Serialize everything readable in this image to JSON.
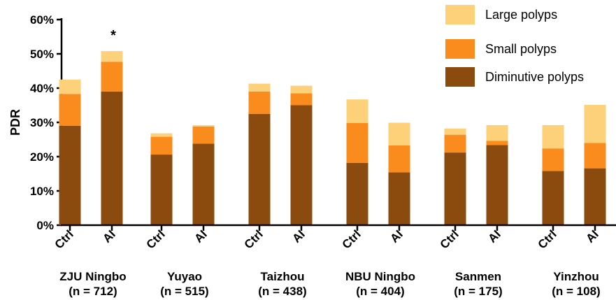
{
  "chart_data": {
    "type": "bar",
    "stacked": true,
    "ylabel": "PDR",
    "ylim": [
      0,
      60
    ],
    "yticks": [
      "0%",
      "10%",
      "20%",
      "30%",
      "40%",
      "50%",
      "60%"
    ],
    "groups": [
      {
        "name": "ZJU Ningbo",
        "n_label": "(n = 712)",
        "bars": [
          {
            "category": "Ctrl",
            "values": [
              29.0,
              9.3,
              4.2
            ]
          },
          {
            "category": "AI",
            "values": [
              39.0,
              8.7,
              3.1
            ],
            "annotation": "*"
          }
        ]
      },
      {
        "name": "Yuyao",
        "n_label": "(n = 515)",
        "bars": [
          {
            "category": "Ctrl",
            "values": [
              20.6,
              5.2,
              1.0
            ]
          },
          {
            "category": "AI",
            "values": [
              23.8,
              5.0,
              0.4
            ]
          }
        ]
      },
      {
        "name": "Taizhou",
        "n_label": "(n = 438)",
        "bars": [
          {
            "category": "Ctrl",
            "values": [
              32.5,
              6.5,
              2.3
            ]
          },
          {
            "category": "AI",
            "values": [
              35.0,
              3.5,
              2.2
            ]
          }
        ]
      },
      {
        "name": "NBU Ningbo",
        "n_label": "(n = 404)",
        "bars": [
          {
            "category": "Ctrl",
            "values": [
              18.2,
              11.6,
              6.9
            ]
          },
          {
            "category": "AI",
            "values": [
              15.4,
              7.9,
              6.6
            ]
          }
        ]
      },
      {
        "name": "Sanmen",
        "n_label": "(n = 175)",
        "bars": [
          {
            "category": "Ctrl",
            "values": [
              21.2,
              5.2,
              1.8
            ]
          },
          {
            "category": "AI",
            "values": [
              23.4,
              1.2,
              4.6
            ]
          }
        ]
      },
      {
        "name": "Yinzhou",
        "n_label": "(n = 108)",
        "bars": [
          {
            "category": "Ctrl",
            "values": [
              15.8,
              6.6,
              6.8
            ]
          },
          {
            "category": "AI",
            "values": [
              16.6,
              7.4,
              11.1
            ]
          }
        ]
      }
    ],
    "series": [
      {
        "name": "Diminutive polyps",
        "color": "#8B4A0E"
      },
      {
        "name": "Small polyps",
        "color": "#F98C1D"
      },
      {
        "name": "Large polyps",
        "color": "#FDD07A"
      }
    ],
    "legend_order": [
      "Large polyps",
      "Small polyps",
      "Diminutive polyps"
    ],
    "legend_position": "top-right",
    "grid": false
  }
}
